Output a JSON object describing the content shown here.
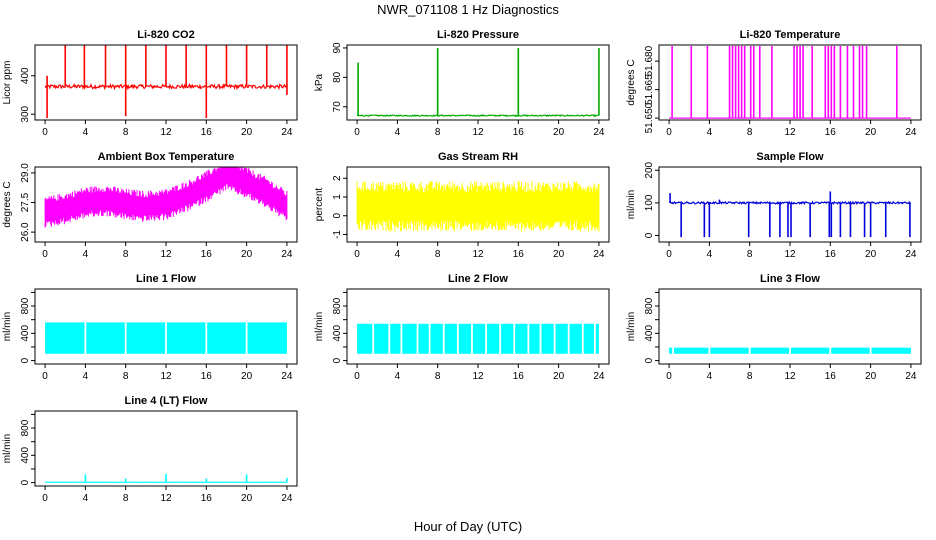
{
  "figure": {
    "title": "NWR_071108  1 Hz Diagnostics",
    "xlabel": "Hour of Day (UTC)"
  },
  "chart_data": [
    {
      "type": "line",
      "title": "Li-820 CO2",
      "ylabel": "Licor ppm",
      "color": "#ff0000",
      "xlim": [
        -1,
        25
      ],
      "xticks": [
        0,
        4,
        8,
        12,
        16,
        20,
        24
      ],
      "ylim": [
        285,
        480
      ],
      "yticks": [
        300,
        400
      ],
      "ytick_labels": [
        "300",
        "400"
      ],
      "series": [
        {
          "baseline": 372,
          "noise": 5,
          "spread": 0,
          "spikes": [
            {
              "x": 0.2,
              "min": 290,
              "max": 400
            },
            {
              "x": 2.0,
              "max": 480
            },
            {
              "x": 3.9,
              "max": 480
            },
            {
              "x": 6.0,
              "max": 480
            },
            {
              "x": 8.0,
              "max": 480,
              "min": 295
            },
            {
              "x": 10.0,
              "max": 480
            },
            {
              "x": 12.0,
              "max": 480
            },
            {
              "x": 14.0,
              "max": 480
            },
            {
              "x": 16.0,
              "max": 480,
              "min": 290
            },
            {
              "x": 18.0,
              "max": 480
            },
            {
              "x": 20.0,
              "max": 480
            },
            {
              "x": 22.0,
              "max": 480
            },
            {
              "x": 24.0,
              "max": 480,
              "min": 350
            }
          ]
        }
      ]
    },
    {
      "type": "line",
      "title": "Li-820 Pressure",
      "ylabel": "kPa",
      "color": "#00aa00",
      "xlim": [
        -1,
        25
      ],
      "xticks": [
        0,
        4,
        8,
        12,
        16,
        20,
        24
      ],
      "ylim": [
        65.5,
        91
      ],
      "yticks": [
        70,
        80,
        90
      ],
      "ytick_labels": [
        "70",
        "80",
        "90"
      ],
      "series": [
        {
          "baseline": 67.0,
          "noise": 0.2,
          "spread": 0,
          "spikes": [
            {
              "x": 0.1,
              "max": 85
            },
            {
              "x": 8.0,
              "max": 90
            },
            {
              "x": 16.0,
              "max": 90
            },
            {
              "x": 24.0,
              "max": 90
            }
          ]
        }
      ]
    },
    {
      "type": "line",
      "title": "Li-820 Temperature",
      "ylabel": "degrees C",
      "color": "#ff00ff",
      "xlim": [
        -1,
        25
      ],
      "xticks": [
        0,
        4,
        8,
        12,
        16,
        20,
        24
      ],
      "ylim": [
        51.649,
        51.6885
      ],
      "yticks": [
        51.65,
        51.665,
        51.68
      ],
      "ytick_labels": [
        "51.650",
        "51.665",
        "51.680"
      ],
      "series": [
        {
          "baseline": 51.65,
          "noise": 0,
          "spread": 0,
          "square_top": 51.688,
          "spikes": [
            {
              "x": 0.3
            },
            {
              "x": 2.2
            },
            {
              "x": 3.8
            },
            {
              "x": 6.0
            },
            {
              "x": 6.3
            },
            {
              "x": 6.6
            },
            {
              "x": 6.9
            },
            {
              "x": 7.2
            },
            {
              "x": 7.5
            },
            {
              "x": 8.1
            },
            {
              "x": 8.4
            },
            {
              "x": 9.0
            },
            {
              "x": 10.2
            },
            {
              "x": 12.4
            },
            {
              "x": 12.7
            },
            {
              "x": 13.0
            },
            {
              "x": 13.3
            },
            {
              "x": 14.2
            },
            {
              "x": 15.5
            },
            {
              "x": 15.8
            },
            {
              "x": 16.1
            },
            {
              "x": 16.4
            },
            {
              "x": 17.0
            },
            {
              "x": 17.7
            },
            {
              "x": 18.3
            },
            {
              "x": 18.9
            },
            {
              "x": 19.2
            },
            {
              "x": 19.6
            },
            {
              "x": 22.6
            }
          ]
        }
      ]
    },
    {
      "type": "line",
      "title": "Ambient Box Temperature",
      "ylabel": "degrees C",
      "color": "#ff00ff",
      "xlim": [
        -1,
        25
      ],
      "xticks": [
        0,
        4,
        8,
        12,
        16,
        20,
        24
      ],
      "ylim": [
        25.5,
        29.3
      ],
      "yticks": [
        26.0,
        27.5,
        29.0
      ],
      "ytick_labels": [
        "26.0",
        "27.5",
        "29.0"
      ],
      "series": [
        {
          "curve": [
            [
              0,
              27.0
            ],
            [
              2,
              27.2
            ],
            [
              4,
              27.5
            ],
            [
              6,
              27.6
            ],
            [
              8,
              27.4
            ],
            [
              10,
              27.3
            ],
            [
              12,
              27.4
            ],
            [
              14,
              27.8
            ],
            [
              16,
              28.3
            ],
            [
              18,
              28.9
            ],
            [
              20,
              28.5
            ],
            [
              22,
              28.0
            ],
            [
              24,
              27.3
            ]
          ],
          "noise": 0.35,
          "spread": 0.9,
          "spikes": []
        }
      ]
    },
    {
      "type": "line",
      "title": "Gas Stream RH",
      "ylabel": "percent",
      "color": "#ffff00",
      "xlim": [
        -1,
        25
      ],
      "xticks": [
        0,
        4,
        8,
        12,
        16,
        20,
        24
      ],
      "ylim": [
        -1.4,
        2.6
      ],
      "yticks": [
        -1,
        0,
        1,
        2
      ],
      "ytick_labels": [
        "-1",
        "0",
        "1",
        "2"
      ],
      "series": [
        {
          "baseline": 0.5,
          "noise": 0.6,
          "spread": 1.5,
          "spikes": []
        }
      ]
    },
    {
      "type": "line",
      "title": "Sample Flow",
      "ylabel": "ml/min",
      "color": "#0000dd",
      "xlim": [
        -1,
        25
      ],
      "xticks": [
        0,
        4,
        8,
        12,
        16,
        20,
        24
      ],
      "ylim": [
        -20,
        210
      ],
      "yticks": [
        0,
        100,
        200
      ],
      "ytick_labels": [
        "0",
        "100",
        "200"
      ],
      "series": [
        {
          "baseline": 100,
          "noise": 3,
          "spread": 0,
          "spikes": [
            {
              "x": 0.1,
              "max": 130
            },
            {
              "x": 1.2,
              "min": -5
            },
            {
              "x": 3.5,
              "min": -5
            },
            {
              "x": 4.0,
              "min": -5
            },
            {
              "x": 5.0,
              "max": 110
            },
            {
              "x": 7.9,
              "min": -5
            },
            {
              "x": 10.0,
              "min": -5
            },
            {
              "x": 11.0,
              "min": -5
            },
            {
              "x": 11.8,
              "min": -5
            },
            {
              "x": 12.1,
              "min": -5
            },
            {
              "x": 14.0,
              "min": -5
            },
            {
              "x": 15.9,
              "min": -5
            },
            {
              "x": 16.0,
              "max": 135
            },
            {
              "x": 16.1,
              "min": -5
            },
            {
              "x": 17.0,
              "min": -5
            },
            {
              "x": 18.0,
              "min": -5
            },
            {
              "x": 19.4,
              "min": -5
            },
            {
              "x": 20.0,
              "min": -5
            },
            {
              "x": 21.5,
              "min": -5
            },
            {
              "x": 23.9,
              "min": -5
            }
          ]
        }
      ]
    },
    {
      "type": "line",
      "title": "Line 1 Flow",
      "ylabel": "ml/min",
      "color": "#00ffff",
      "xlim": [
        -1,
        25
      ],
      "xticks": [
        0,
        4,
        8,
        12,
        16,
        20,
        24
      ],
      "ylim": [
        -50,
        1050
      ],
      "yticks": [
        0,
        200,
        400,
        600,
        800,
        1000
      ],
      "ytick_labels": [
        "0",
        "400",
        "800"
      ],
      "ytick_label_values": [
        0,
        400,
        800
      ],
      "series": [
        {
          "band": [
            100,
            560
          ],
          "gaps": [
            4.0,
            8.0,
            12.0,
            16.0,
            20.0
          ],
          "spikes": []
        }
      ]
    },
    {
      "type": "line",
      "title": "Line 2 Flow",
      "ylabel": "ml/min",
      "color": "#00ffff",
      "xlim": [
        -1,
        25
      ],
      "xticks": [
        0,
        4,
        8,
        12,
        16,
        20,
        24
      ],
      "ylim": [
        -50,
        1050
      ],
      "yticks": [
        0,
        200,
        400,
        600,
        800,
        1000
      ],
      "ytick_labels": [
        "0",
        "400",
        "800"
      ],
      "ytick_label_values": [
        0,
        400,
        800
      ],
      "series": [
        {
          "band": [
            100,
            540
          ],
          "gaps": [
            1.6,
            3.2,
            4.4,
            6.0,
            7.2,
            8.6,
            10.0,
            11.4,
            12.8,
            14.2,
            15.6,
            17.0,
            18.2,
            19.6,
            21.0,
            22.4,
            23.6
          ],
          "spikes": []
        }
      ]
    },
    {
      "type": "line",
      "title": "Line 3 Flow",
      "ylabel": "ml/min",
      "color": "#00ffff",
      "xlim": [
        -1,
        25
      ],
      "xticks": [
        0,
        4,
        8,
        12,
        16,
        20,
        24
      ],
      "ylim": [
        -50,
        1050
      ],
      "yticks": [
        0,
        200,
        400,
        600,
        800,
        1000
      ],
      "ytick_labels": [
        "0",
        "400",
        "800"
      ],
      "ytick_label_values": [
        0,
        400,
        800
      ],
      "series": [
        {
          "band": [
            100,
            190
          ],
          "gaps": [
            0.4,
            4.0,
            8.0,
            12.0,
            16.0,
            20.0
          ],
          "spikes": []
        }
      ]
    },
    {
      "type": "line",
      "title": "Line 4 (LT) Flow",
      "ylabel": "ml/min",
      "color": "#00ffff",
      "xlim": [
        -1,
        25
      ],
      "xticks": [
        0,
        4,
        8,
        12,
        16,
        20,
        24
      ],
      "ylim": [
        -50,
        1050
      ],
      "yticks": [
        0,
        200,
        400,
        600,
        800,
        1000
      ],
      "ytick_labels": [
        "0",
        "400",
        "800"
      ],
      "ytick_label_values": [
        0,
        400,
        800
      ],
      "series": [
        {
          "baseline": 5,
          "noise": 2,
          "spread": 0,
          "spikes": [
            {
              "x": 4.0,
              "max": 120
            },
            {
              "x": 8.0,
              "max": 60
            },
            {
              "x": 12.0,
              "max": 130
            },
            {
              "x": 16.0,
              "max": 60
            },
            {
              "x": 20.0,
              "max": 120
            },
            {
              "x": 24.0,
              "max": 70
            }
          ]
        }
      ]
    }
  ]
}
